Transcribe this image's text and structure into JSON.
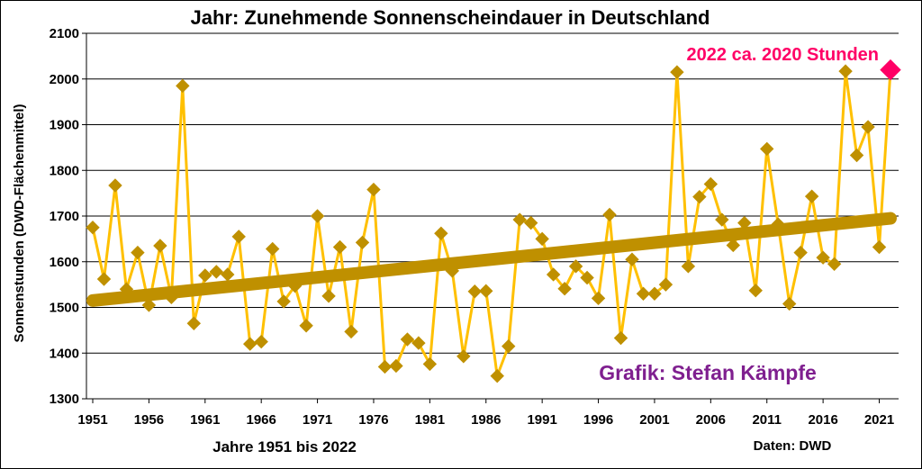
{
  "chart_data": {
    "type": "line",
    "title": "Jahr: Zunehmende Sonnenscheindauer  in Deutschland",
    "xlabel": "Jahre 1951 bis 2022",
    "ylabel": "Sonnenstunden (DWD-Flächenmittel)",
    "ylim": [
      1300,
      2100
    ],
    "yticks": [
      1300,
      1400,
      1500,
      1600,
      1700,
      1800,
      1900,
      2000,
      2100
    ],
    "xlim": [
      1951,
      2022
    ],
    "xticks": [
      "1951",
      "1956",
      "1961",
      "1966",
      "1971",
      "1976",
      "1981",
      "1986",
      "1991",
      "1996",
      "2001",
      "2006",
      "2011",
      "2016",
      "2021"
    ],
    "grid": "horizontal",
    "x": [
      1951,
      1952,
      1953,
      1954,
      1955,
      1956,
      1957,
      1958,
      1959,
      1960,
      1961,
      1962,
      1963,
      1964,
      1965,
      1966,
      1967,
      1968,
      1969,
      1970,
      1971,
      1972,
      1973,
      1974,
      1975,
      1976,
      1977,
      1978,
      1979,
      1980,
      1981,
      1982,
      1983,
      1984,
      1985,
      1986,
      1987,
      1988,
      1989,
      1990,
      1991,
      1992,
      1993,
      1994,
      1995,
      1996,
      1997,
      1998,
      1999,
      2000,
      2001,
      2002,
      2003,
      2004,
      2005,
      2006,
      2007,
      2008,
      2009,
      2010,
      2011,
      2012,
      2013,
      2014,
      2015,
      2016,
      2017,
      2018,
      2019,
      2020,
      2021,
      2022
    ],
    "values": [
      1675,
      1562,
      1767,
      1540,
      1620,
      1505,
      1635,
      1522,
      1985,
      1465,
      1570,
      1578,
      1572,
      1655,
      1420,
      1425,
      1628,
      1513,
      1547,
      1460,
      1700,
      1525,
      1632,
      1447,
      1642,
      1758,
      1370,
      1372,
      1430,
      1422,
      1376,
      1662,
      1580,
      1393,
      1535,
      1536,
      1350,
      1415,
      1692,
      1685,
      1650,
      1572,
      1541,
      1590,
      1565,
      1520,
      1703,
      1433,
      1605,
      1530,
      1530,
      1550,
      2015,
      1590,
      1742,
      1770,
      1692,
      1636,
      1685,
      1537,
      1847,
      1682,
      1508,
      1620,
      1743,
      1609,
      1595,
      2017,
      1833,
      1895,
      1632,
      2020
    ],
    "trend": {
      "x": [
        1951,
        2022
      ],
      "values": [
        1515,
        1695
      ]
    },
    "colors": {
      "line": "#ffc000",
      "marker": "#bf9000",
      "trend": "#bf9000",
      "highlight": "#ff0066"
    },
    "highlight": {
      "x": 2022,
      "value": 2020
    },
    "annotations": {
      "highlight_label": "2022 ca. 2020 Stunden",
      "credit": "Grafik: Stefan Kämpfe",
      "source": "Daten: DWD"
    }
  }
}
